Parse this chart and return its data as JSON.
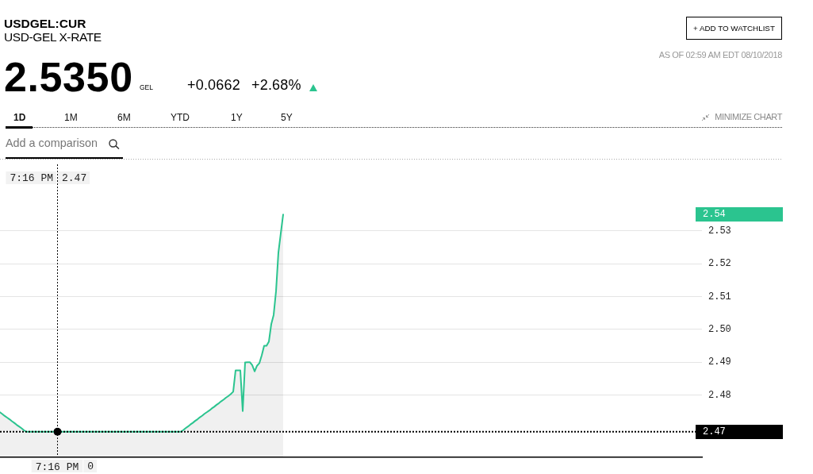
{
  "chart_data": {
    "type": "area",
    "title": "USDGEL:CUR",
    "subtitle": "USD-GEL X-RATE",
    "categories": [
      null,
      null,
      null,
      null,
      null,
      null,
      null,
      null,
      null,
      null,
      null,
      null,
      null,
      null,
      null,
      null,
      null,
      null,
      null,
      null,
      null,
      null,
      null,
      null,
      "7:16 PM",
      null,
      null,
      null,
      null,
      null,
      null,
      null,
      null,
      null,
      null,
      null,
      null,
      null,
      null,
      null,
      null,
      null,
      null,
      null,
      null,
      null,
      null,
      null,
      null,
      null,
      null,
      null,
      null,
      null,
      null,
      null,
      null,
      null,
      null,
      null,
      null,
      null,
      null,
      null,
      null,
      null,
      null,
      null,
      null,
      null,
      null,
      null,
      null,
      null,
      null,
      null,
      null,
      null,
      null,
      null,
      null,
      null,
      null,
      null,
      null,
      null,
      null,
      null,
      null,
      null,
      null,
      null,
      null,
      null,
      null,
      null,
      null,
      null,
      null,
      null,
      null,
      null,
      null,
      null,
      null,
      null,
      null,
      null,
      null,
      null,
      null,
      null,
      null,
      null,
      null,
      null,
      null,
      null,
      null,
      null,
      null,
      null,
      null,
      null,
      null,
      null,
      null,
      null,
      null,
      null,
      null,
      null,
      null,
      null,
      null,
      null,
      null,
      null,
      null,
      null,
      null,
      null,
      null,
      null,
      null,
      null,
      null,
      null,
      null,
      null,
      null,
      null,
      null,
      null,
      null,
      null,
      null,
      null,
      null,
      null,
      null,
      null,
      null,
      null,
      null,
      null,
      null,
      null,
      null,
      null,
      null,
      null,
      null,
      null,
      null,
      null,
      null,
      null,
      null,
      null,
      null,
      null,
      null,
      null,
      null,
      null,
      null,
      null,
      null,
      null,
      null,
      null,
      null,
      null,
      null,
      null,
      null,
      null,
      null,
      null,
      null,
      null,
      null,
      null,
      null,
      null,
      null,
      null,
      null,
      null,
      null,
      null,
      null,
      null,
      null,
      null,
      null,
      null,
      null,
      null,
      null,
      null,
      null,
      null,
      null,
      null,
      null,
      null,
      null,
      null,
      null,
      null,
      null,
      null,
      null,
      null,
      null,
      null,
      null,
      null,
      null,
      null,
      null,
      null,
      null,
      null,
      null,
      null,
      null,
      null,
      null,
      null,
      null,
      null,
      null,
      null,
      null,
      null,
      null,
      null,
      null,
      null,
      null,
      null,
      null,
      null,
      null,
      null,
      null,
      null,
      null,
      null,
      null,
      null,
      null,
      null,
      null,
      null,
      null,
      null,
      null,
      null,
      null,
      null,
      null,
      null,
      null,
      null,
      null,
      null,
      null,
      null,
      null,
      null,
      null,
      null
    ],
    "values": [
      2.4747,
      2.4742,
      2.4736,
      2.4731,
      2.4726,
      2.472,
      2.4715,
      2.4709,
      2.4704,
      2.4699,
      2.4693,
      2.4688,
      2.4688,
      2.4688,
      2.4688,
      2.4688,
      2.4688,
      2.4688,
      2.4688,
      2.4688,
      2.4688,
      2.4688,
      2.4688,
      2.4688,
      2.4688,
      2.4688,
      2.4688,
      2.4688,
      2.4688,
      2.4688,
      2.4688,
      2.4688,
      2.4688,
      2.4688,
      2.4688,
      2.4688,
      2.4688,
      2.4688,
      2.4688,
      2.4688,
      2.4688,
      2.4688,
      2.4688,
      2.4688,
      2.4688,
      2.4688,
      2.4688,
      2.4688,
      2.4688,
      2.4688,
      2.4688,
      2.4688,
      2.4688,
      2.4688,
      2.4688,
      2.4688,
      2.4688,
      2.4688,
      2.4688,
      2.4688,
      2.4688,
      2.4688,
      2.4688,
      2.4688,
      2.4688,
      2.4688,
      2.4688,
      2.4688,
      2.4688,
      2.4688,
      2.4688,
      2.4688,
      2.4688,
      2.4688,
      2.4688,
      2.4688,
      2.4688,
      2.4693,
      2.4699,
      2.4704,
      2.471,
      2.4715,
      2.4721,
      2.4726,
      2.4732,
      2.4737,
      2.4743,
      2.4748,
      2.4753,
      2.4759,
      2.4764,
      2.477,
      2.4775,
      2.4781,
      2.4786,
      2.4792,
      2.4797,
      2.4803,
      2.481,
      2.4875,
      2.4875,
      2.4875,
      2.4751,
      2.4899,
      2.49,
      2.49,
      2.4891,
      2.4872,
      2.4889,
      2.4897,
      2.4921,
      2.495,
      2.495,
      2.4963,
      2.5016,
      2.5044,
      2.5116,
      2.5234,
      2.5293,
      2.535,
      null,
      null,
      null,
      null,
      null,
      null,
      null,
      null,
      null,
      null,
      null,
      null,
      null,
      null,
      null,
      null,
      null,
      null,
      null,
      null,
      null,
      null,
      null,
      null,
      null,
      null,
      null,
      null,
      null,
      null,
      null,
      null,
      null,
      null,
      null,
      null,
      null,
      null,
      null,
      null,
      null,
      null,
      null,
      null,
      null,
      null,
      null,
      null,
      null,
      null,
      null,
      null,
      null,
      null,
      null,
      null,
      null,
      null,
      null,
      null,
      null,
      null,
      null,
      null,
      null,
      null,
      null,
      null,
      null,
      null,
      null,
      null,
      null,
      null,
      null,
      null,
      null,
      null,
      null,
      null,
      null,
      null,
      null,
      null,
      null,
      null,
      null,
      null,
      null,
      null,
      null,
      null,
      null,
      null,
      null,
      null,
      null,
      null,
      null,
      null,
      null,
      null,
      null,
      null,
      null,
      null,
      null,
      null,
      null,
      null,
      null,
      null,
      null,
      null,
      null,
      null,
      null,
      null,
      null,
      null,
      null,
      null,
      null,
      null,
      null,
      null,
      null,
      null,
      null,
      null,
      null,
      null,
      null,
      null,
      null,
      null,
      null,
      null,
      null,
      null,
      null,
      null,
      null,
      null,
      null,
      null,
      null,
      null,
      null,
      null,
      null,
      null,
      null,
      null,
      null,
      null,
      null,
      null,
      null,
      null,
      null,
      null,
      null,
      null,
      null,
      null,
      null,
      null,
      null,
      null,
      null,
      null,
      null,
      null,
      null,
      null
    ],
    "color": "#2bc48f",
    "ylim": [
      2.461,
      2.552
    ],
    "yticks": [
      2.48,
      2.49,
      {
        "value": 2.5,
        "label": "2.50"
      },
      2.51,
      2.52,
      2.53
    ],
    "grid": "y",
    "ref_lines": [
      {
        "axis": "y",
        "value": 2.4688,
        "label": "2.47",
        "color": "#000000",
        "line_style": "dotted"
      },
      {
        "axis": "x",
        "value": "7:16 PM",
        "label": "7:16 PM",
        "color": "#000000",
        "line_style": "dotted"
      }
    ],
    "annotations": [
      "2.5350",
      "GEL",
      "+0.0662",
      "+2.68%",
      "AS OF 02:59 AM EDT 08/10/2018",
      "+ ADD TO WATCHLIST",
      "1D",
      "1M",
      "6M",
      "YTD",
      "1Y",
      "5Y",
      "MINIMIZE CHART",
      "Add a comparison",
      "2.47",
      "2.54",
      "0"
    ]
  }
}
